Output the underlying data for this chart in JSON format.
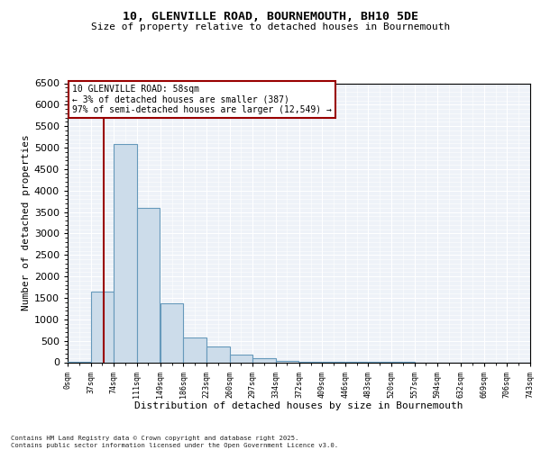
{
  "title_line1": "10, GLENVILLE ROAD, BOURNEMOUTH, BH10 5DE",
  "title_line2": "Size of property relative to detached houses in Bournemouth",
  "xlabel": "Distribution of detached houses by size in Bournemouth",
  "ylabel": "Number of detached properties",
  "bar_color": "#ccdcea",
  "bar_edge_color": "#6699bb",
  "annotation_title": "10 GLENVILLE ROAD: 58sqm",
  "annotation_line2": "← 3% of detached houses are smaller (387)",
  "annotation_line3": "97% of semi-detached houses are larger (12,549) →",
  "bin_edges": [
    0,
    37,
    74,
    111,
    149,
    186,
    223,
    260,
    297,
    334,
    372,
    409,
    446,
    483,
    520,
    557,
    594,
    632,
    669,
    706,
    743
  ],
  "counts": [
    5,
    1650,
    5080,
    3600,
    1380,
    580,
    360,
    175,
    85,
    38,
    14,
    7,
    3,
    2,
    1,
    0,
    0,
    0,
    0,
    0
  ],
  "ylim_max": 6500,
  "yticks": [
    0,
    500,
    1000,
    1500,
    2000,
    2500,
    3000,
    3500,
    4000,
    4500,
    5000,
    5500,
    6000,
    6500
  ],
  "vline_color": "#990000",
  "vline_x": 58,
  "ann_box_color": "#990000",
  "footer_line1": "Contains HM Land Registry data © Crown copyright and database right 2025.",
  "footer_line2": "Contains public sector information licensed under the Open Government Licence v3.0.",
  "bg_color": "#eef2f8",
  "grid_color": "#ffffff"
}
